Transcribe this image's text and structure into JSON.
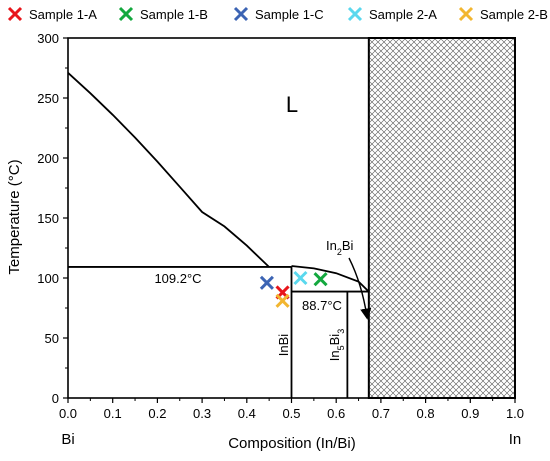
{
  "chart_data": {
    "type": "scatter",
    "xlabel": "Composition (In/Bi)",
    "ylabel": "Temperature (°C)",
    "xlim": [
      0.0,
      1.0
    ],
    "ylim": [
      0,
      300
    ],
    "xticks": [
      "0.0",
      "0.1",
      "0.2",
      "0.3",
      "0.4",
      "0.5",
      "0.6",
      "0.7",
      "0.8",
      "0.9",
      "1.0"
    ],
    "yticks": [
      "0",
      "50",
      "100",
      "150",
      "200",
      "250",
      "300"
    ],
    "x_end_labels": {
      "left": "Bi",
      "right": "In"
    },
    "legend_position": "top",
    "series": [
      {
        "name": "Sample 1-A",
        "color": "#e8151b",
        "x": [
          0.48
        ],
        "y": [
          88
        ]
      },
      {
        "name": "Sample 1-B",
        "color": "#13a83e",
        "x": [
          0.565
        ],
        "y": [
          99
        ]
      },
      {
        "name": "Sample 1-C",
        "color": "#3c64b4",
        "x": [
          0.445
        ],
        "y": [
          96
        ]
      },
      {
        "name": "Sample 2-A",
        "color": "#5ad8ee",
        "x": [
          0.52
        ],
        "y": [
          100
        ]
      },
      {
        "name": "Sample 2-B",
        "color": "#f2b630",
        "x": [
          0.48
        ],
        "y": [
          81
        ]
      }
    ],
    "phase_boundaries": {
      "liquidus_bi_side": [
        [
          0.0,
          271
        ],
        [
          0.05,
          254
        ],
        [
          0.1,
          236
        ],
        [
          0.15,
          217
        ],
        [
          0.2,
          197
        ],
        [
          0.25,
          176
        ],
        [
          0.3,
          155
        ],
        [
          0.35,
          143
        ],
        [
          0.4,
          127
        ],
        [
          0.45,
          109.2
        ]
      ],
      "liquidus_in_side": [
        [
          0.5,
          110
        ],
        [
          0.55,
          108
        ],
        [
          0.6,
          104
        ],
        [
          0.65,
          97
        ],
        [
          0.673,
          88.7
        ]
      ],
      "eutectic_line": {
        "x": [
          0.0,
          0.5
        ],
        "y": 109.2
      },
      "peritectic_line": {
        "x": [
          0.5,
          0.673
        ],
        "y": 88.7
      },
      "inbi_line": {
        "x": 0.5,
        "y": [
          0,
          109.2
        ]
      },
      "in5bi3_line": {
        "x": 0.625,
        "y": [
          0,
          88.7
        ]
      },
      "in2bi_line": {
        "x": 0.673,
        "y": [
          0,
          300
        ]
      },
      "hatched_region": {
        "x": [
          0.673,
          1.0
        ],
        "y": [
          0,
          300
        ]
      }
    },
    "annotations": {
      "liquid": "L",
      "eutectic_temp": "109.2°C",
      "peritectic_temp": "88.7°C",
      "inbi": "InBi",
      "in5bi3": {
        "base1": "In",
        "sub1": "5",
        "base2": "Bi",
        "sub2": "3"
      },
      "in2bi": {
        "base1": "In",
        "sub1": "2",
        "base2": "Bi"
      }
    }
  }
}
